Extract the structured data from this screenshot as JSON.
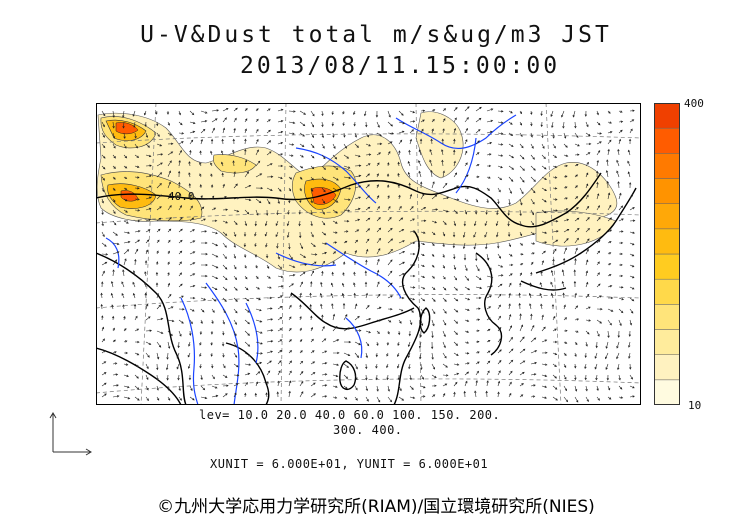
{
  "title": {
    "line1": "U-V&Dust total m/s&ug/m3 JST",
    "line2": "2013/08/11.15:00:00"
  },
  "colorbar": {
    "max_label": "400",
    "min_label": "10",
    "colors": [
      "#fffbe0",
      "#fff2c0",
      "#ffec9c",
      "#ffe47a",
      "#ffd94a",
      "#ffcc20",
      "#ffbb10",
      "#ffa808",
      "#ff9300",
      "#ff7a00",
      "#ff5c00",
      "#f04000"
    ]
  },
  "contour_label": "40.0",
  "levels": {
    "line1": "lev=  10.0  20.0  40.0  60.0  100.  150.  200.",
    "line2": "300.  400."
  },
  "units": "XUNIT = 6.000E+01, YUNIT = 6.000E+01",
  "credit": "©九州大学応用力学研究所(RIAM)/国立環境研究所(NIES)",
  "palette": {
    "coast": "#000000",
    "river": "#1a44ff",
    "grid": "#777777",
    "dust_light": "#fff2c0",
    "dust_mid": "#ffd94a",
    "dust_high": "#ff5c00"
  }
}
